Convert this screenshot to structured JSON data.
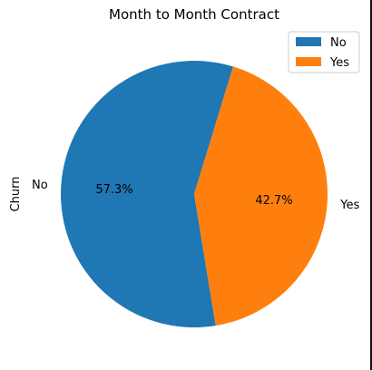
{
  "chart_data": {
    "type": "pie",
    "title": "Month to Month Contract",
    "ylabel": "Churn",
    "categories": [
      "No",
      "Yes"
    ],
    "values": [
      57.3,
      42.7
    ],
    "data_labels": [
      "57.3%",
      "42.7%"
    ],
    "colors": [
      "#1f77b4",
      "#ff7f0e"
    ],
    "legend": {
      "placement": "top-right",
      "entries": [
        "No",
        "Yes"
      ]
    },
    "start_angle_degrees": 73
  }
}
